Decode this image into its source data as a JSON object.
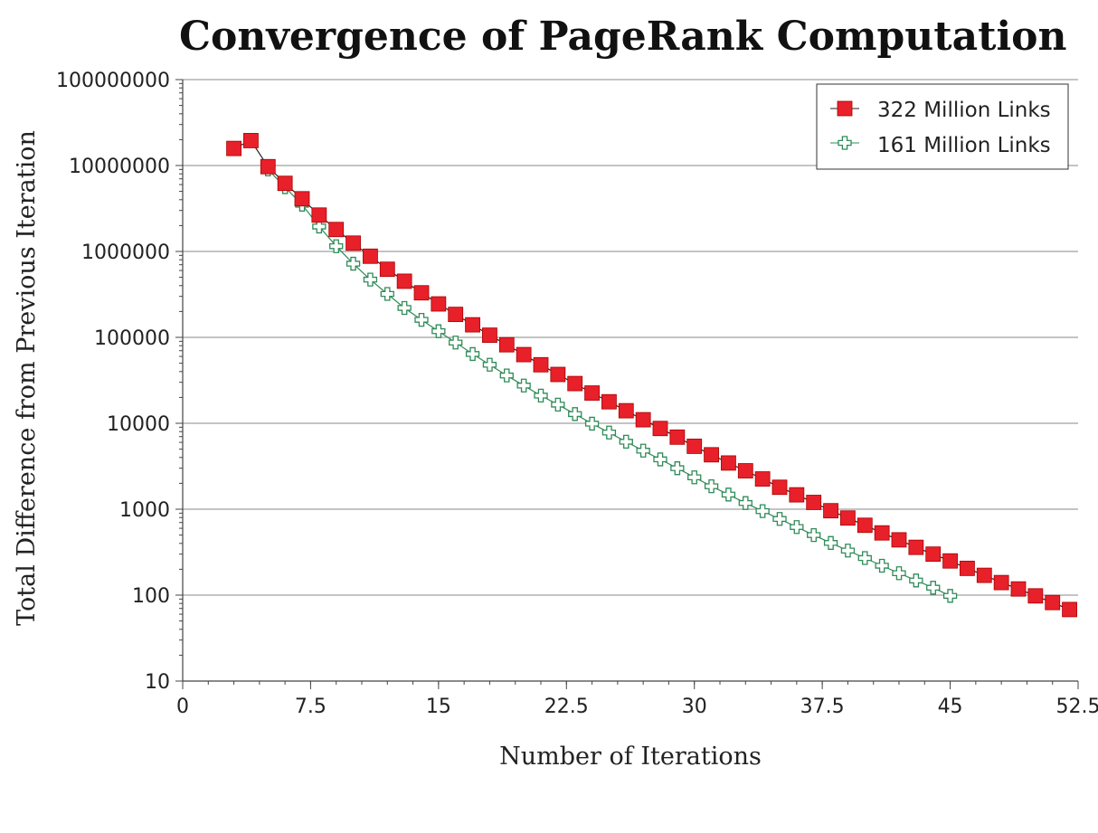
{
  "chart_data": {
    "type": "line",
    "title": "Convergence of PageRank Computation",
    "xlabel": "Number of Iterations",
    "ylabel": "Total Difference from Previous Iteration",
    "xlim": [
      0,
      52.5
    ],
    "ylim": [
      10,
      100000000
    ],
    "yscale": "log",
    "grid": "horizontal",
    "legend_position": "top-right",
    "x_ticks": [
      "0",
      "7.5",
      "15",
      "22.5",
      "30",
      "37.5",
      "45",
      "52.5"
    ],
    "y_ticks": [
      "100000000",
      "10000000",
      "1000000",
      "100000",
      "10000",
      "1000",
      "100",
      "10"
    ],
    "series": [
      {
        "name": "322 Million Links",
        "color": "#e8202a",
        "marker": "filled-square",
        "x": [
          3,
          4,
          5,
          6,
          7,
          8,
          9,
          10,
          11,
          12,
          13,
          14,
          15,
          16,
          17,
          18,
          19,
          20,
          21,
          22,
          23,
          24,
          25,
          26,
          27,
          28,
          29,
          30,
          31,
          32,
          33,
          34,
          35,
          36,
          37,
          38,
          39,
          40,
          41,
          42,
          43,
          44,
          45,
          46,
          47,
          48,
          49,
          50,
          51,
          52
        ],
        "values": [
          15800000,
          19500000,
          9700000,
          6200000,
          4100000,
          2650000,
          1800000,
          1250000,
          880000,
          620000,
          450000,
          330000,
          245000,
          185000,
          140000,
          106000,
          82000,
          63000,
          48000,
          37000,
          29000,
          22500,
          17800,
          14000,
          11000,
          8700,
          6900,
          5400,
          4300,
          3450,
          2800,
          2250,
          1800,
          1470,
          1200,
          960,
          790,
          650,
          530,
          440,
          360,
          300,
          250,
          205,
          170,
          140,
          118,
          98,
          82,
          68
        ]
      },
      {
        "name": "161 Million Links",
        "color": "#2e8b57",
        "marker": "open-cross",
        "x": [
          5,
          6,
          7,
          8,
          9,
          10,
          11,
          12,
          13,
          14,
          15,
          16,
          17,
          18,
          19,
          20,
          21,
          22,
          23,
          24,
          25,
          26,
          27,
          28,
          29,
          30,
          31,
          32,
          33,
          34,
          35,
          36,
          37,
          38,
          39,
          40,
          41,
          42,
          43,
          44,
          45
        ],
        "values": [
          9000000,
          5600000,
          3500000,
          1950000,
          1150000,
          720000,
          470000,
          320000,
          220000,
          160000,
          118000,
          87000,
          64000,
          48000,
          36000,
          27500,
          21000,
          16500,
          12800,
          9900,
          7800,
          6100,
          4800,
          3800,
          3000,
          2350,
          1850,
          1480,
          1180,
          950,
          770,
          620,
          500,
          405,
          330,
          270,
          220,
          180,
          148,
          122,
          98
        ]
      }
    ]
  }
}
